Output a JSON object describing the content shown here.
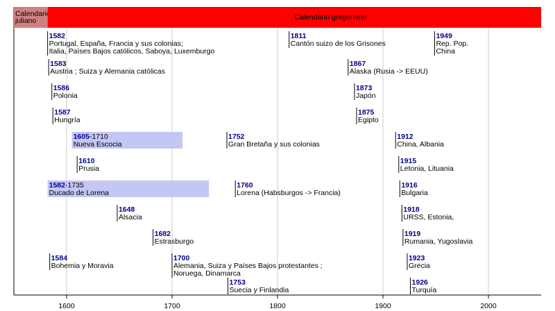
{
  "chart_data": {
    "type": "timeline",
    "xlim": [
      1550,
      2050
    ],
    "xticks": [
      1600,
      1700,
      1800,
      1900,
      2000
    ],
    "grid": true,
    "periods": [
      {
        "label": [
          "Calendario",
          "juliano"
        ],
        "start": 1550,
        "end": 1582,
        "color": "#d08080"
      },
      {
        "label": [
          "Calendario gregoriano"
        ],
        "start": 1582,
        "end": 2050,
        "color": "#ff0000"
      }
    ],
    "range_color": "#c4c6f4",
    "year_color": "#00008b",
    "rows": [
      [
        {
          "year": 1582,
          "label": [
            "Portugal, España, Francia y sus colonias;",
            "Italia, Países Bajos católicos, Saboya, Luxemburgo"
          ]
        },
        {
          "year": 1811,
          "label": [
            "Cantón suizo de los Grisones"
          ]
        },
        {
          "year": 1949,
          "label": [
            "Rep. Pop.",
            "China"
          ]
        }
      ],
      [
        {
          "year": 1583,
          "label": [
            "Austria ; Suiza y Alemania católicas"
          ]
        },
        {
          "year": 1867,
          "label": [
            "Alaska (Rusia -> EEUU)"
          ]
        }
      ],
      [
        {
          "year": 1586,
          "label": [
            "Polonia"
          ]
        },
        {
          "year": 1873,
          "label": [
            "Japón"
          ]
        }
      ],
      [
        {
          "year": 1587,
          "label": [
            "Hungría"
          ]
        },
        {
          "year": 1875,
          "label": [
            "Egipto"
          ]
        }
      ],
      [
        {
          "year": 1605,
          "end": {
            "value": 1710,
            "label": "-1710"
          },
          "label": [
            "Nueva Escocia"
          ]
        },
        {
          "year": 1752,
          "label": [
            "Gran Bretaña y sus colonias"
          ]
        },
        {
          "year": 1912,
          "label": [
            "China, Albania"
          ]
        }
      ],
      [
        {
          "year": 1610,
          "label": [
            "Prusia"
          ]
        },
        {
          "year": 1915,
          "label": [
            "Letonia, Lituania"
          ]
        }
      ],
      [
        {
          "year": 1582,
          "end": {
            "value": 1735,
            "label": "-1735"
          },
          "label": [
            "Ducado de Lorena"
          ]
        },
        {
          "year": 1760,
          "label": [
            "Lorena (Habsburgos -> Francia)"
          ]
        },
        {
          "year": 1916,
          "label": [
            "Bulgaria"
          ]
        }
      ],
      [
        {
          "year": 1648,
          "label": [
            "Alsacia"
          ]
        },
        {
          "year": 1918,
          "label": [
            "URSS, Estonia,"
          ]
        }
      ],
      [
        {
          "year": 1682,
          "label": [
            "Estrasburgo"
          ]
        },
        {
          "year": 1919,
          "label": [
            "Rumania, Yugoslavia"
          ]
        }
      ],
      [
        {
          "year": 1584,
          "label": [
            "Bohemia y Moravia"
          ]
        },
        {
          "year": 1700,
          "label": [
            "Alemania, Suiza y Países Bajos protestantes ;",
            "Noruega, Dinamarca"
          ]
        },
        {
          "year": 1923,
          "label": [
            "Grecia"
          ]
        }
      ],
      [
        {
          "year": 1753,
          "label": [
            "Suecia y Finlandia"
          ]
        },
        {
          "year": 1926,
          "label": [
            "Turquía"
          ]
        }
      ]
    ]
  }
}
